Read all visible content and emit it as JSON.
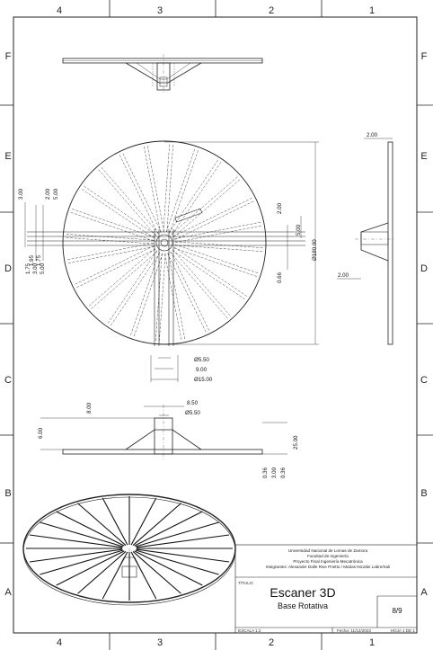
{
  "sheet": {
    "columns_top": [
      "4",
      "3",
      "2",
      "1"
    ],
    "columns_bottom": [
      "4",
      "3",
      "2",
      "1"
    ],
    "rows_left": [
      "F",
      "E",
      "D",
      "C",
      "B",
      "A"
    ],
    "rows_right": [
      "F",
      "E",
      "D",
      "C",
      "B",
      "A"
    ]
  },
  "dimensions": {
    "front_top": "2.00",
    "front_mid": "5.00",
    "front_left1": "3.00",
    "front_left2": "2.00",
    "front_left3": "5.00",
    "front_left4": "1.75",
    "front_left5": "3.00",
    "front_left6": "5.00",
    "front_left7": "1.95",
    "front_left8": "1.75",
    "front_inner": "2.00",
    "front_inner2": "0.66",
    "diameter_large": "Ø180.00",
    "hub_d1": "Ø5.50",
    "hub_w": "9.00",
    "hub_d2": "Ø15.00",
    "side_top": "2.00",
    "side_bottom": "2.00",
    "sec_top": "8.50",
    "sec_d": "Ø5.50",
    "sec_left1": "8.00",
    "sec_left2": "6.00",
    "sec_r1": "0.36",
    "sec_r2": "3.00",
    "sec_r3": "0.36",
    "sec_r4": "25.00"
  },
  "title_block": {
    "institution": [
      "Universidad Nacional de Lomas de Zamora",
      "Facultad de Ingeniería",
      "Proyecto Final Ingeniería Mecatrónica",
      "Integrantes: Alexander Dalle Rive Prietto / Matías Nicolás Labre/Suli"
    ],
    "title_label": "TÍTULO:",
    "title": "Escaner 3D",
    "subtitle": "Base Rotativa",
    "sheet_number": "8/9",
    "scale": "ESCALA 1:2",
    "date": "Fecha: 11/12/2023",
    "sheet_total": "HOJA 1 DE 1"
  }
}
